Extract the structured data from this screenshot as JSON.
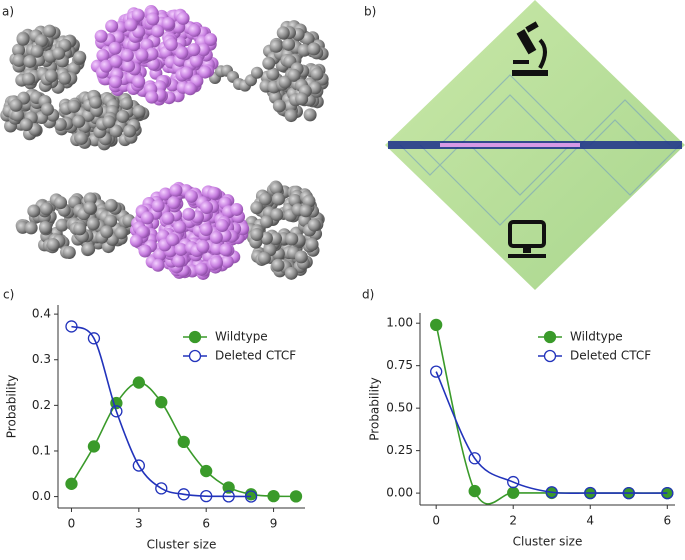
{
  "panels": {
    "a": "a)",
    "b": "b)"
  },
  "chart_data": [
    {
      "type": "line",
      "panel_label": "c)",
      "xlabel": "Cluster size",
      "ylabel": "Probability",
      "xlim": [
        -0.6,
        10.4
      ],
      "xticks": [
        0,
        3,
        6,
        9
      ],
      "ylim": [
        -0.025,
        0.42
      ],
      "yticks": [
        {
          "value": 0,
          "label": "0.0"
        },
        0.1,
        0.2,
        0.3,
        0.4
      ],
      "legend": "upper right",
      "series": [
        {
          "name": "Wildtype",
          "color": "#3a9a2a",
          "marker": "filled",
          "x": [
            0,
            1,
            2,
            3,
            4,
            5,
            6,
            7,
            8,
            9,
            10
          ],
          "values": [
            0.028,
            0.11,
            0.205,
            0.25,
            0.207,
            0.12,
            0.056,
            0.02,
            0.005,
            0.001,
            0.0005
          ]
        },
        {
          "name": "Deleted CTCF",
          "color": "#2233bb",
          "marker": "open",
          "x": [
            0,
            1,
            2,
            3,
            4,
            5,
            6,
            7,
            8
          ],
          "values": [
            0.373,
            0.347,
            0.187,
            0.068,
            0.018,
            0.005,
            0.001,
            0.0005,
            0.0002
          ]
        }
      ]
    },
    {
      "type": "line",
      "panel_label": "d)",
      "xlabel": "Cluster size",
      "ylabel": "Probability",
      "xlim": [
        -0.42,
        6.2
      ],
      "xticks": [
        0,
        2,
        4,
        6
      ],
      "ylim": [
        -0.07,
        1.06
      ],
      "yticks": [
        {
          "value": 0,
          "label": "0.00"
        },
        {
          "value": 0.25,
          "label": "0.25"
        },
        {
          "value": 0.5,
          "label": "0.50"
        },
        {
          "value": 0.75,
          "label": "0.75"
        },
        {
          "value": 1,
          "label": "1.00"
        }
      ],
      "legend": "upper right",
      "series": [
        {
          "name": "Wildtype",
          "color": "#3a9a2a",
          "marker": "filled",
          "x": [
            0,
            1,
            2,
            3,
            4,
            5,
            6
          ],
          "values": [
            0.99,
            0.012,
            0.002,
            0.001,
            0,
            0,
            0
          ]
        },
        {
          "name": "Deleted CTCF",
          "color": "#2233bb",
          "marker": "open",
          "x": [
            0,
            1,
            2,
            3,
            4,
            5,
            6
          ],
          "values": [
            0.715,
            0.205,
            0.065,
            0.005,
            0.0005,
            0,
            0
          ]
        }
      ]
    }
  ]
}
